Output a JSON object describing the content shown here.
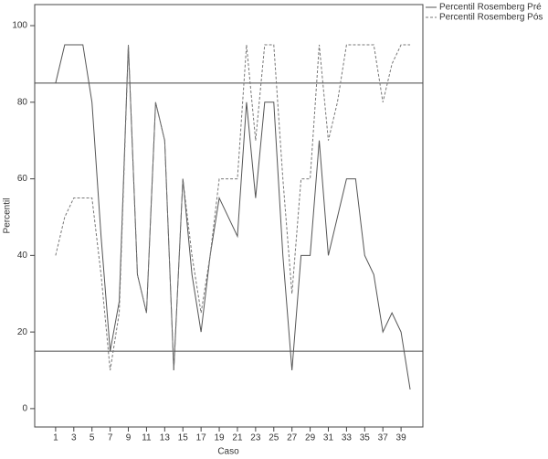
{
  "chart_data": {
    "type": "line",
    "x_label": "Caso",
    "y_label": "Percentil",
    "x": [
      1,
      2,
      3,
      4,
      5,
      6,
      7,
      8,
      9,
      10,
      11,
      12,
      13,
      14,
      15,
      16,
      17,
      18,
      19,
      20,
      21,
      22,
      23,
      24,
      25,
      26,
      27,
      28,
      29,
      30,
      31,
      32,
      33,
      34,
      35,
      36,
      37,
      38,
      39,
      40
    ],
    "series": [
      {
        "name": "Percentil Rosemberg Pré",
        "color": "#555555",
        "dash": "none",
        "values": [
          85,
          95,
          95,
          95,
          80,
          45,
          15,
          28,
          95,
          35,
          25,
          80,
          70,
          10,
          60,
          35,
          20,
          40,
          55,
          50,
          45,
          80,
          55,
          80,
          80,
          40,
          10,
          40,
          40,
          70,
          40,
          50,
          60,
          60,
          40,
          35,
          20,
          25,
          20,
          5
        ]
      },
      {
        "name": "Percentil Rosemberg Pós",
        "color": "#777777",
        "dash": "3,2",
        "values": [
          40,
          50,
          55,
          55,
          55,
          35,
          10,
          25,
          95,
          35,
          25,
          80,
          70,
          10,
          60,
          40,
          25,
          40,
          60,
          60,
          60,
          95,
          70,
          95,
          95,
          60,
          30,
          60,
          60,
          95,
          70,
          80,
          95,
          95,
          95,
          95,
          80,
          90,
          95,
          95
        ]
      }
    ],
    "reference_lines": [
      85,
      15
    ],
    "xlim": [
      -1.3,
      41.4
    ],
    "xticks": [
      1,
      3,
      5,
      7,
      9,
      11,
      13,
      15,
      17,
      19,
      21,
      23,
      25,
      27,
      29,
      31,
      33,
      35,
      37,
      39
    ],
    "ylim": [
      -4.8,
      105.5
    ],
    "yticks": [
      0,
      20,
      40,
      60,
      80,
      100
    ],
    "legend": "top-right-outside"
  }
}
